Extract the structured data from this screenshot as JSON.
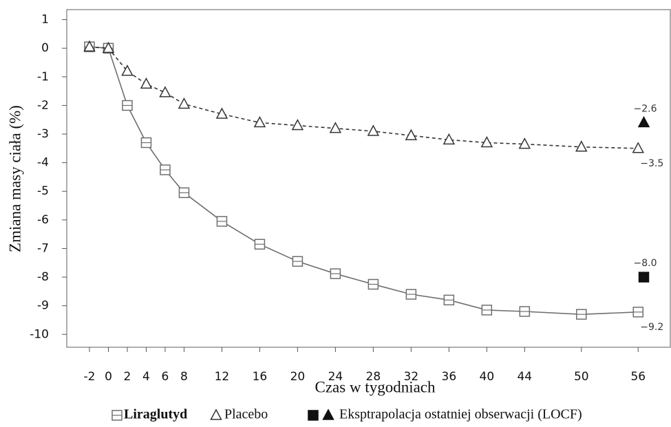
{
  "chart_data": {
    "type": "line",
    "y_label": "Zmiana masy ciała (%)",
    "x_label": "Czas w tygodniach",
    "x": [
      -2,
      0,
      2,
      4,
      6,
      8,
      12,
      16,
      20,
      24,
      28,
      32,
      36,
      40,
      44,
      50,
      56
    ],
    "xlim": [
      -4.4,
      59.4
    ],
    "xticks": [
      -2,
      0,
      2,
      4,
      6,
      8,
      12,
      16,
      20,
      24,
      28,
      32,
      36,
      40,
      44,
      50,
      56
    ],
    "ylim": [
      -10.45,
      1.35
    ],
    "yticks": [
      1,
      0,
      -1,
      -2,
      -3,
      -4,
      -5,
      -6,
      -7,
      -8,
      -9,
      -10
    ],
    "series": [
      {
        "name": "Liraglutyd",
        "color": "#6e6e6e",
        "marker": "square",
        "dashed": false,
        "values": [
          0.05,
          0,
          -2.0,
          -3.3,
          -4.25,
          -5.05,
          -6.05,
          -6.85,
          -7.45,
          -7.88,
          -8.25,
          -8.6,
          -8.8,
          -9.15,
          -9.2,
          -9.3,
          -9.22
        ],
        "value_labels": [
          null,
          null,
          null,
          null,
          null,
          null,
          null,
          null,
          null,
          null,
          null,
          null,
          null,
          null,
          null,
          null,
          "−9.2"
        ]
      },
      {
        "name": "Placebo",
        "color": "#333333",
        "marker": "triangle",
        "dashed": true,
        "values": [
          0.05,
          0,
          -0.8,
          -1.25,
          -1.55,
          -1.95,
          -2.3,
          -2.6,
          -2.7,
          -2.8,
          -2.9,
          -3.05,
          -3.2,
          -3.3,
          -3.35,
          -3.45,
          -3.5
        ],
        "value_labels": [
          null,
          null,
          null,
          null,
          null,
          null,
          null,
          null,
          null,
          null,
          null,
          null,
          null,
          null,
          null,
          null,
          "−3.5"
        ]
      }
    ],
    "locf": {
      "name": "Eksptrapolacja ostatniej obserwacji (LOCF)",
      "color": "#111111",
      "x": 56.6,
      "values": [
        -8.0,
        -2.6
      ],
      "value_labels": [
        "−8.0",
        "−2.6"
      ]
    }
  }
}
